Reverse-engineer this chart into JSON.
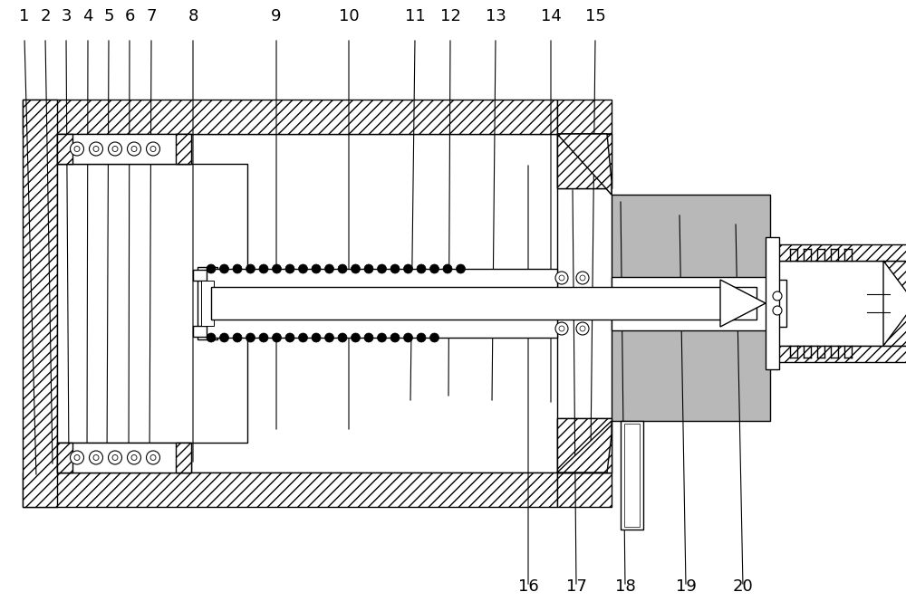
{
  "bg_color": "#ffffff",
  "line_color": "#000000",
  "gray_fill": "#b8b8b8",
  "hatch_fill": "#ffffff",
  "dot_fill": "#000000",
  "lw": 1.0,
  "top_labels": [
    "1",
    "2",
    "3",
    "4",
    "5",
    "6",
    "7",
    "8",
    "9",
    "10",
    "11",
    "12",
    "13",
    "14",
    "15"
  ],
  "top_lx": [
    27,
    50,
    73,
    97,
    120,
    143,
    167,
    213,
    305,
    385,
    458,
    497,
    547,
    608,
    657
  ],
  "top_ax": [
    40,
    58,
    76,
    96,
    118,
    142,
    165,
    213,
    305,
    385,
    453,
    495,
    543,
    608,
    652
  ],
  "top_ay": [
    148,
    160,
    160,
    160,
    160,
    160,
    160,
    162,
    198,
    198,
    230,
    235,
    230,
    228,
    175
  ],
  "bot_labels": [
    "16",
    "17",
    "18",
    "19",
    "20"
  ],
  "bot_lx": [
    583,
    636,
    690,
    757,
    820
  ],
  "bot_ax": [
    583,
    632,
    685,
    750,
    812
  ],
  "bot_ay": [
    495,
    468,
    455,
    440,
    430
  ]
}
